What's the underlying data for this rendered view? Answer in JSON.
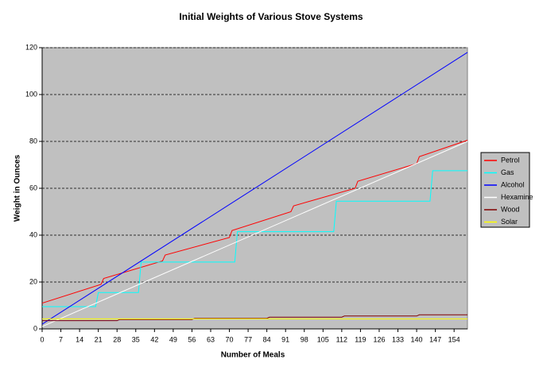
{
  "chart_data": {
    "type": "line",
    "title": "Initial Weights of Various Stove Systems",
    "x_label": "Number of Meals",
    "y_label": "Weight in Ounces",
    "xlim": [
      0,
      159
    ],
    "xticks": [
      0,
      7,
      14,
      21,
      28,
      35,
      42,
      49,
      56,
      63,
      70,
      77,
      84,
      91,
      98,
      105,
      112,
      119,
      126,
      133,
      140,
      147,
      154
    ],
    "ylim": [
      0,
      120
    ],
    "yticks": [
      0,
      20,
      40,
      60,
      80,
      100,
      120
    ],
    "grid": true,
    "legend": "right",
    "series": [
      {
        "name": "Petrol",
        "color": "#ff0000",
        "x": [
          0,
          22,
          23,
          45,
          46,
          70,
          71,
          93,
          94,
          117,
          118,
          140,
          141,
          159
        ],
        "values": [
          11,
          19,
          21.5,
          29,
          31.5,
          39,
          42,
          50,
          52.5,
          60,
          63,
          70.5,
          73.5,
          80.5
        ]
      },
      {
        "name": "Gas",
        "color": "#00ffff",
        "x": [
          0,
          20,
          21,
          36,
          37,
          72,
          73,
          109,
          110,
          145,
          146,
          159
        ],
        "values": [
          9.5,
          9.5,
          15.5,
          15.5,
          28.5,
          28.5,
          41.5,
          41.5,
          54.5,
          54.5,
          67.5,
          67.5
        ]
      },
      {
        "name": "Alcohol",
        "color": "#0000ff",
        "x": [
          0,
          159
        ],
        "values": [
          2,
          118
        ]
      },
      {
        "name": "Hexamine",
        "color": "#ffffff",
        "x": [
          0,
          159
        ],
        "values": [
          1,
          80
        ]
      },
      {
        "name": "Wood",
        "color": "#800000",
        "x": [
          0,
          28,
          29,
          56,
          57,
          84,
          85,
          112,
          113,
          140,
          141,
          159
        ],
        "values": [
          3.5,
          3.5,
          4,
          4,
          4.5,
          4.5,
          5,
          5,
          5.5,
          5.5,
          6,
          6
        ]
      },
      {
        "name": "Solar",
        "color": "#ffff00",
        "x": [
          0,
          159
        ],
        "values": [
          4.3,
          4.3
        ]
      }
    ]
  }
}
